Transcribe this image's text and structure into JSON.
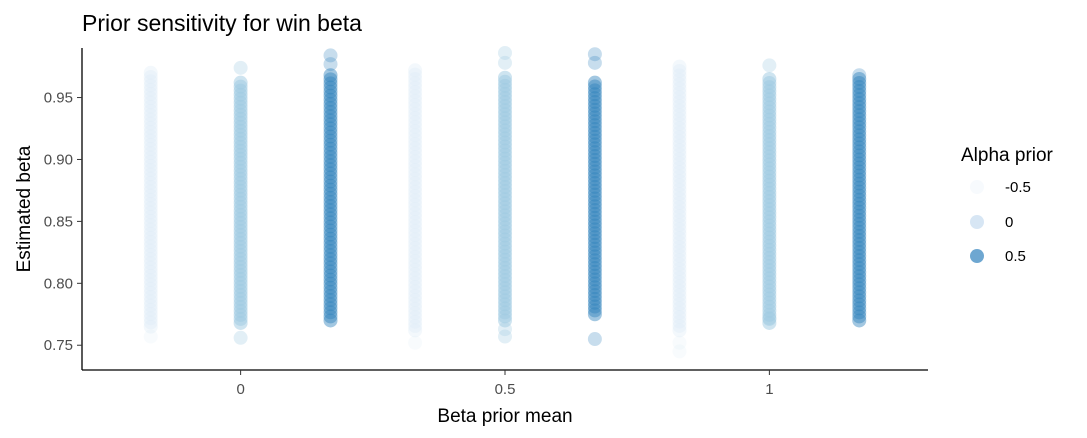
{
  "chart_data": {
    "type": "scatter",
    "title": "Prior sensitivity for win beta",
    "xlabel": "Beta prior mean",
    "ylabel": "Estimated beta",
    "xlim": [
      -0.3,
      1.3
    ],
    "ylim": [
      0.73,
      0.99
    ],
    "x_ticks": [
      {
        "value": 0,
        "label": "0"
      },
      {
        "value": 0.5,
        "label": "0.5"
      },
      {
        "value": 1,
        "label": "1"
      }
    ],
    "y_ticks": [
      {
        "value": 0.75,
        "label": "0.75"
      },
      {
        "value": 0.8,
        "label": "0.80"
      },
      {
        "value": 0.85,
        "label": "0.85"
      },
      {
        "value": 0.9,
        "label": "0.90"
      },
      {
        "value": 0.95,
        "label": "0.95"
      }
    ],
    "grid": false,
    "legend": {
      "title": "Alpha prior",
      "position": "right",
      "entries": [
        {
          "label": "-0.5",
          "color": "#f4f8fc"
        },
        {
          "label": "0",
          "color": "#c6dbef"
        },
        {
          "label": "0.5",
          "color": "#3182bd"
        }
      ]
    },
    "series": [
      {
        "alpha_prior": -0.5,
        "color": "#deebf7",
        "opacity": 0.35,
        "columns": [
          {
            "x": -0.17,
            "y_min": 0.765,
            "y_max": 0.97,
            "outliers": [
              0.757
            ]
          },
          {
            "x": 0.33,
            "y_min": 0.762,
            "y_max": 0.972,
            "outliers": [
              0.752
            ]
          },
          {
            "x": 0.83,
            "y_min": 0.762,
            "y_max": 0.975,
            "outliers": [
              0.745,
              0.752
            ]
          }
        ]
      },
      {
        "alpha_prior": 0,
        "color": "#9ecae1",
        "opacity": 0.5,
        "columns": [
          {
            "x": 0,
            "y_min": 0.768,
            "y_max": 0.962,
            "outliers": [
              0.756,
              0.974
            ]
          },
          {
            "x": 0.5,
            "y_min": 0.77,
            "y_max": 0.966,
            "outliers": [
              0.757,
              0.763,
              0.978,
              0.986
            ]
          },
          {
            "x": 1,
            "y_min": 0.768,
            "y_max": 0.965,
            "outliers": [
              0.772,
              0.976
            ]
          }
        ]
      },
      {
        "alpha_prior": 0.5,
        "color": "#3182bd",
        "opacity": 0.45,
        "columns": [
          {
            "x": 0.17,
            "y_min": 0.77,
            "y_max": 0.968,
            "outliers": [
              0.977,
              0.984
            ]
          },
          {
            "x": 0.67,
            "y_min": 0.775,
            "y_max": 0.962,
            "outliers": [
              0.755,
              0.978,
              0.985
            ]
          },
          {
            "x": 1.17,
            "y_min": 0.77,
            "y_max": 0.965,
            "outliers": [
              0.968
            ]
          }
        ]
      }
    ]
  }
}
